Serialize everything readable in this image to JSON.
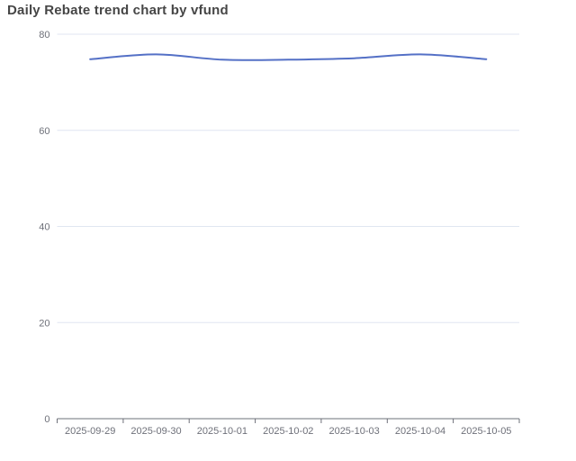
{
  "page": {
    "background_color": "#ffffff"
  },
  "chart_data": {
    "type": "line",
    "title": "Daily Rebate trend chart by vfund",
    "categories": [
      "2025-09-29",
      "2025-09-30",
      "2025-10-01",
      "2025-10-02",
      "2025-10-03",
      "2025-10-04",
      "2025-10-05"
    ],
    "values": [
      74.8,
      75.8,
      74.7,
      74.7,
      75.0,
      75.8,
      74.8
    ],
    "xlabel": "",
    "ylabel": "",
    "ylim": [
      0,
      80
    ],
    "yticks": [
      0,
      20,
      40,
      60,
      80
    ],
    "grid": true,
    "legend": false,
    "smooth": true,
    "line_color": "#5470c6",
    "line_width": 2,
    "grid_color": "#e0e6f1",
    "axis_line_color": "#6e7079",
    "axis_label_color": "#6e7079",
    "title_color": "#464646"
  }
}
